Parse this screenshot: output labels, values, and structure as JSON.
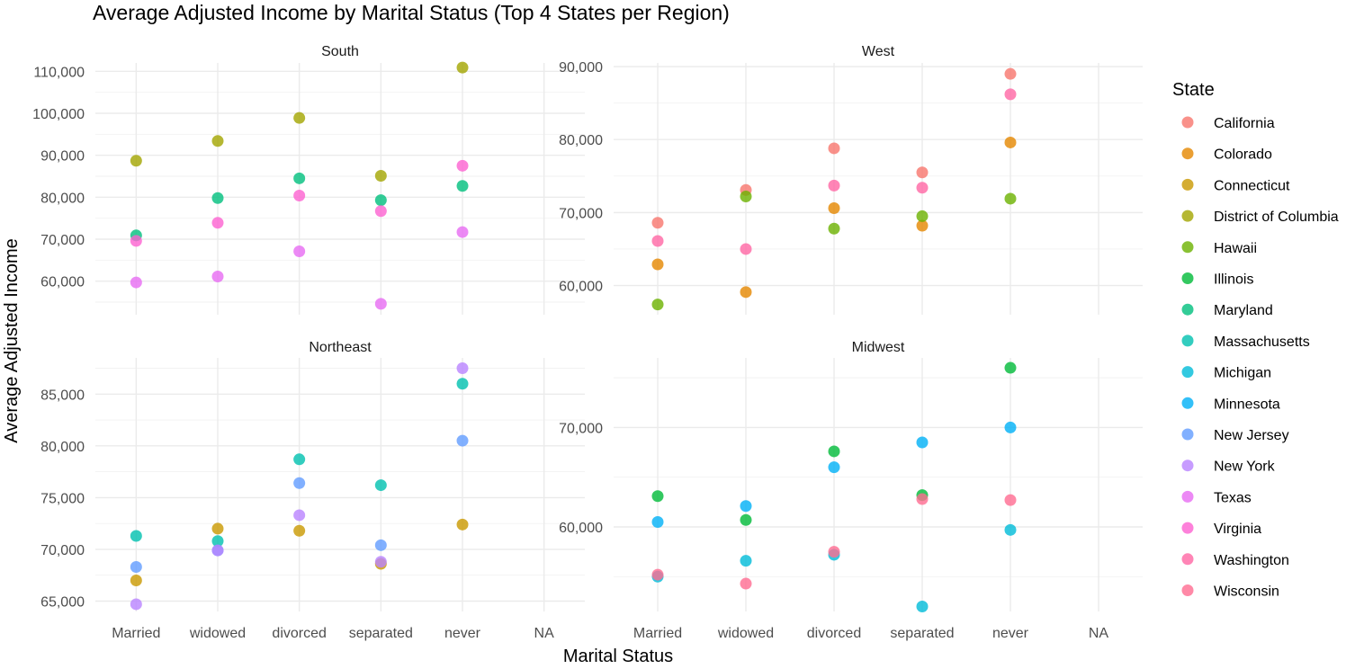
{
  "chart_data": {
    "type": "scatter",
    "title": "Average Adjusted Income by Marital Status (Top 4 States per Region)",
    "xlabel": "Marital Status",
    "ylabel": "Average Adjusted Income",
    "categories": [
      "Married",
      "widowed",
      "divorced",
      "separated",
      "never",
      "NA"
    ],
    "legend": {
      "title": "State",
      "position": "right",
      "entries": [
        {
          "name": "California",
          "color": "#F8766D"
        },
        {
          "name": "Colorado",
          "color": "#E58700"
        },
        {
          "name": "Connecticut",
          "color": "#C99800"
        },
        {
          "name": "District of Columbia",
          "color": "#A3A500"
        },
        {
          "name": "Hawaii",
          "color": "#6BB100"
        },
        {
          "name": "Illinois",
          "color": "#00BA38"
        },
        {
          "name": "Maryland",
          "color": "#00BF7D"
        },
        {
          "name": "Massachusetts",
          "color": "#00C0AF"
        },
        {
          "name": "Michigan",
          "color": "#00BCD8"
        },
        {
          "name": "Minnesota",
          "color": "#00B0F6"
        },
        {
          "name": "New Jersey",
          "color": "#619CFF"
        },
        {
          "name": "New York",
          "color": "#B983FF"
        },
        {
          "name": "Texas",
          "color": "#E76BF3"
        },
        {
          "name": "Virginia",
          "color": "#FD61D1"
        },
        {
          "name": "Washington",
          "color": "#FF67A4"
        },
        {
          "name": "Wisconsin",
          "color": "#FF6C91"
        }
      ]
    },
    "grid": true,
    "panels": [
      {
        "facet": "South",
        "ylim": [
          52000,
          112000
        ],
        "yticks": [
          60000,
          70000,
          80000,
          90000,
          100000,
          110000
        ],
        "ytick_labels": [
          "60,000",
          "70,000",
          "80,000",
          "90,000",
          "100,000",
          "110,000"
        ],
        "series": [
          {
            "name": "District of Columbia",
            "values": [
              88700,
              93400,
              98900,
              85100,
              110900,
              null
            ]
          },
          {
            "name": "Maryland",
            "values": [
              70900,
              79800,
              84500,
              79300,
              82700,
              null
            ]
          },
          {
            "name": "Virginia",
            "values": [
              69600,
              73900,
              80400,
              76700,
              87500,
              null
            ]
          },
          {
            "name": "Texas",
            "values": [
              59700,
              61100,
              67100,
              54600,
              71700,
              null
            ]
          }
        ]
      },
      {
        "facet": "West",
        "ylim": [
          56000,
          90500
        ],
        "yticks": [
          60000,
          70000,
          80000,
          90000
        ],
        "ytick_labels": [
          "60,000",
          "70,000",
          "80,000",
          "90,000"
        ],
        "series": [
          {
            "name": "California",
            "values": [
              68600,
              73100,
              78800,
              75500,
              89000,
              null
            ]
          },
          {
            "name": "Colorado",
            "values": [
              62900,
              59100,
              70600,
              68200,
              79600,
              null
            ]
          },
          {
            "name": "Hawaii",
            "values": [
              57400,
              72200,
              67800,
              69500,
              71900,
              null
            ]
          },
          {
            "name": "Washington",
            "values": [
              66100,
              65000,
              73700,
              73400,
              86200,
              null
            ]
          }
        ]
      },
      {
        "facet": "Northeast",
        "ylim": [
          64000,
          88500
        ],
        "yticks": [
          65000,
          70000,
          75000,
          80000,
          85000
        ],
        "ytick_labels": [
          "65,000",
          "70,000",
          "75,000",
          "80,000",
          "85,000"
        ],
        "series": [
          {
            "name": "Connecticut",
            "values": [
              67000,
              72000,
              71800,
              68600,
              72400,
              null
            ]
          },
          {
            "name": "Massachusetts",
            "values": [
              71300,
              70800,
              78700,
              76200,
              86000,
              null
            ]
          },
          {
            "name": "New Jersey",
            "values": [
              68300,
              69900,
              76400,
              70400,
              80500,
              null
            ]
          },
          {
            "name": "New York",
            "values": [
              64700,
              69900,
              73300,
              68800,
              87500,
              null
            ]
          }
        ]
      },
      {
        "facet": "Midwest",
        "ylim": [
          51500,
          77000
        ],
        "yticks": [
          60000,
          70000
        ],
        "ytick_labels": [
          "60,000",
          "70,000"
        ],
        "series": [
          {
            "name": "Illinois",
            "values": [
              63100,
              60700,
              67600,
              63200,
              76000,
              null
            ]
          },
          {
            "name": "Michigan",
            "values": [
              55000,
              56600,
              57200,
              52000,
              59700,
              null
            ]
          },
          {
            "name": "Minnesota",
            "values": [
              60500,
              62100,
              66000,
              68500,
              70000,
              null
            ]
          },
          {
            "name": "Wisconsin",
            "values": [
              55200,
              54300,
              57500,
              62800,
              62700,
              null
            ]
          }
        ]
      }
    ]
  }
}
